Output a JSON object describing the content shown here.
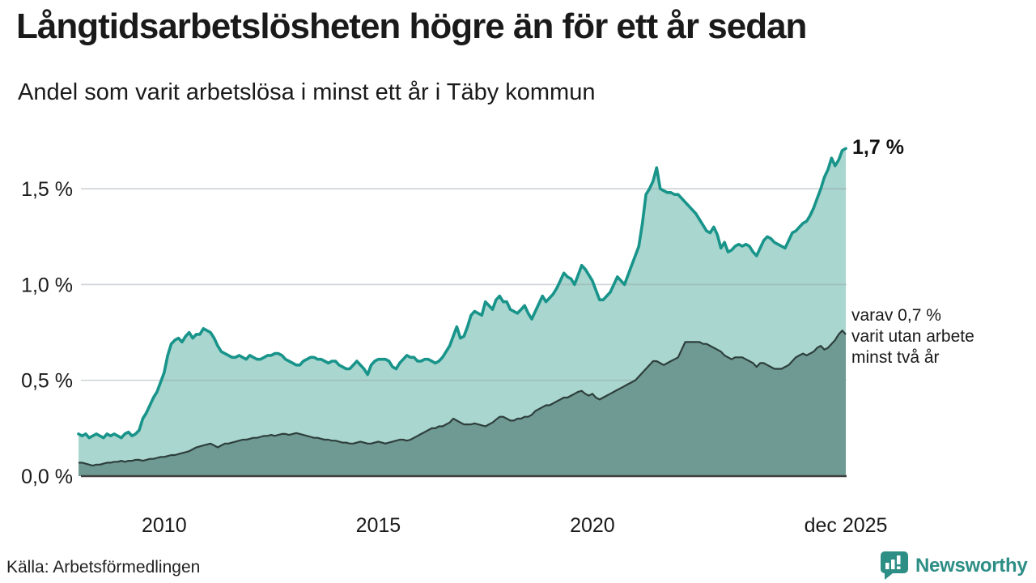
{
  "chart_data": {
    "type": "area",
    "title": "Långtidsarbetslösheten högre än för ett år sedan",
    "subtitle": "Andel som varit arbetslösa i minst ett år i Täby kommun",
    "unit": "%",
    "frequency": "monthly",
    "x_range": [
      "jan 2008",
      "dec 2025"
    ],
    "ylim": [
      0,
      1.85
    ],
    "grid": "horizontal",
    "legend_position": "end-of-line-labels",
    "colors": {
      "line_primary": "#18948a",
      "fill_primary": "#a9d6cf",
      "line_secondary": "#2e3f3c",
      "fill_secondary": "#6f9a93",
      "gridline": "#e2e2e6",
      "axis_line": "#3f3f3f",
      "brand_teal": "#2d8e85"
    },
    "yticks": [
      {
        "value": 0.0,
        "label": "0,0 %"
      },
      {
        "value": 0.5,
        "label": "0,5 %"
      },
      {
        "value": 1.0,
        "label": "1,0 %"
      },
      {
        "value": 1.5,
        "label": "1,5 %"
      }
    ],
    "xticks": [
      {
        "index": 24,
        "label": "2010"
      },
      {
        "index": 84,
        "label": "2015"
      },
      {
        "index": 144,
        "label": "2020"
      },
      {
        "index": 215,
        "label": "dec 2025"
      }
    ],
    "annotations": {
      "primary": "1,7 %",
      "secondary_lines": [
        "varav 0,7 %",
        "varit utan arbete",
        "minst två år"
      ]
    },
    "series": [
      {
        "name": "Andel som varit arbetslösa minst ett år",
        "end_value": "1,7 %",
        "values": [
          0.22,
          0.21,
          0.22,
          0.2,
          0.21,
          0.22,
          0.21,
          0.2,
          0.22,
          0.21,
          0.22,
          0.21,
          0.2,
          0.22,
          0.23,
          0.21,
          0.22,
          0.24,
          0.3,
          0.33,
          0.37,
          0.41,
          0.44,
          0.49,
          0.54,
          0.63,
          0.69,
          0.71,
          0.72,
          0.7,
          0.73,
          0.75,
          0.72,
          0.74,
          0.74,
          0.77,
          0.76,
          0.75,
          0.72,
          0.68,
          0.65,
          0.64,
          0.63,
          0.62,
          0.62,
          0.63,
          0.62,
          0.61,
          0.63,
          0.62,
          0.61,
          0.61,
          0.62,
          0.63,
          0.63,
          0.64,
          0.64,
          0.63,
          0.61,
          0.6,
          0.59,
          0.58,
          0.58,
          0.6,
          0.61,
          0.62,
          0.62,
          0.61,
          0.61,
          0.6,
          0.59,
          0.6,
          0.6,
          0.58,
          0.57,
          0.56,
          0.56,
          0.58,
          0.6,
          0.58,
          0.56,
          0.53,
          0.58,
          0.6,
          0.61,
          0.61,
          0.61,
          0.6,
          0.57,
          0.56,
          0.59,
          0.61,
          0.63,
          0.62,
          0.62,
          0.6,
          0.6,
          0.61,
          0.61,
          0.6,
          0.59,
          0.6,
          0.62,
          0.65,
          0.68,
          0.73,
          0.78,
          0.72,
          0.73,
          0.78,
          0.84,
          0.86,
          0.85,
          0.84,
          0.91,
          0.89,
          0.87,
          0.92,
          0.94,
          0.91,
          0.91,
          0.87,
          0.86,
          0.85,
          0.87,
          0.89,
          0.85,
          0.82,
          0.86,
          0.9,
          0.94,
          0.91,
          0.93,
          0.95,
          0.98,
          1.02,
          1.06,
          1.04,
          1.03,
          1.0,
          1.05,
          1.1,
          1.08,
          1.05,
          1.02,
          0.97,
          0.92,
          0.92,
          0.94,
          0.96,
          1.0,
          1.04,
          1.02,
          1.0,
          1.05,
          1.1,
          1.15,
          1.2,
          1.32,
          1.47,
          1.5,
          1.54,
          1.61,
          1.5,
          1.49,
          1.48,
          1.48,
          1.47,
          1.47,
          1.45,
          1.43,
          1.41,
          1.39,
          1.37,
          1.34,
          1.31,
          1.28,
          1.27,
          1.3,
          1.26,
          1.19,
          1.22,
          1.17,
          1.18,
          1.2,
          1.21,
          1.2,
          1.21,
          1.2,
          1.17,
          1.15,
          1.19,
          1.23,
          1.25,
          1.24,
          1.22,
          1.21,
          1.2,
          1.19,
          1.23,
          1.27,
          1.28,
          1.3,
          1.32,
          1.33,
          1.36,
          1.4,
          1.45,
          1.5,
          1.56,
          1.6,
          1.66,
          1.62,
          1.65,
          1.7,
          1.71
        ]
      },
      {
        "name": "varav utan arbete minst två år",
        "end_value": "0,7 %",
        "values": [
          0.07,
          0.07,
          0.065,
          0.06,
          0.055,
          0.06,
          0.06,
          0.065,
          0.07,
          0.07,
          0.075,
          0.075,
          0.08,
          0.075,
          0.08,
          0.08,
          0.085,
          0.085,
          0.08,
          0.085,
          0.09,
          0.09,
          0.095,
          0.1,
          0.1,
          0.105,
          0.11,
          0.11,
          0.115,
          0.12,
          0.125,
          0.13,
          0.14,
          0.15,
          0.155,
          0.16,
          0.165,
          0.17,
          0.16,
          0.15,
          0.16,
          0.17,
          0.17,
          0.175,
          0.18,
          0.185,
          0.19,
          0.19,
          0.195,
          0.2,
          0.2,
          0.205,
          0.21,
          0.21,
          0.215,
          0.21,
          0.215,
          0.22,
          0.22,
          0.215,
          0.22,
          0.225,
          0.22,
          0.215,
          0.21,
          0.205,
          0.2,
          0.2,
          0.195,
          0.19,
          0.19,
          0.185,
          0.185,
          0.18,
          0.175,
          0.175,
          0.17,
          0.17,
          0.175,
          0.18,
          0.175,
          0.17,
          0.17,
          0.175,
          0.18,
          0.175,
          0.17,
          0.175,
          0.18,
          0.185,
          0.19,
          0.19,
          0.185,
          0.19,
          0.2,
          0.21,
          0.22,
          0.23,
          0.24,
          0.25,
          0.25,
          0.26,
          0.26,
          0.27,
          0.28,
          0.3,
          0.29,
          0.28,
          0.27,
          0.27,
          0.27,
          0.275,
          0.27,
          0.265,
          0.26,
          0.27,
          0.28,
          0.295,
          0.31,
          0.31,
          0.3,
          0.29,
          0.29,
          0.3,
          0.3,
          0.31,
          0.31,
          0.32,
          0.34,
          0.35,
          0.36,
          0.37,
          0.37,
          0.38,
          0.39,
          0.4,
          0.41,
          0.41,
          0.42,
          0.43,
          0.44,
          0.445,
          0.43,
          0.42,
          0.43,
          0.41,
          0.4,
          0.41,
          0.42,
          0.43,
          0.44,
          0.45,
          0.46,
          0.47,
          0.48,
          0.49,
          0.5,
          0.52,
          0.54,
          0.56,
          0.58,
          0.6,
          0.6,
          0.59,
          0.58,
          0.59,
          0.6,
          0.61,
          0.62,
          0.66,
          0.7,
          0.7,
          0.7,
          0.7,
          0.7,
          0.69,
          0.69,
          0.68,
          0.67,
          0.66,
          0.65,
          0.63,
          0.62,
          0.61,
          0.62,
          0.62,
          0.62,
          0.61,
          0.6,
          0.59,
          0.57,
          0.59,
          0.59,
          0.58,
          0.57,
          0.56,
          0.56,
          0.56,
          0.57,
          0.58,
          0.6,
          0.62,
          0.63,
          0.64,
          0.63,
          0.64,
          0.65,
          0.67,
          0.68,
          0.66,
          0.67,
          0.69,
          0.71,
          0.74,
          0.76,
          0.74
        ]
      }
    ]
  },
  "footer": {
    "source": "Källa: Arbetsförmedlingen",
    "brand": "Newsworthy"
  }
}
